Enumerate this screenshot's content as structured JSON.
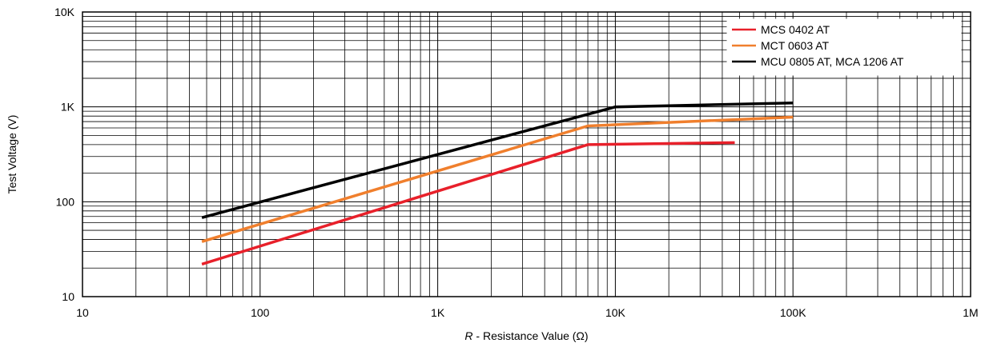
{
  "chart_data": {
    "type": "line",
    "title": "",
    "xlabel_italic": "R",
    "xlabel": " - Resistance Value (Ω)",
    "ylabel": "Test Voltage (V)",
    "x_scale": "log",
    "y_scale": "log",
    "xlim": [
      10,
      1000000
    ],
    "ylim": [
      10,
      10000
    ],
    "x_ticks": [
      10,
      100,
      1000,
      10000,
      100000,
      1000000
    ],
    "x_tick_labels": [
      "10",
      "100",
      "1K",
      "10K",
      "100K",
      "1M"
    ],
    "y_ticks": [
      10,
      100,
      1000,
      10000
    ],
    "y_tick_labels": [
      "10",
      "100",
      "1K",
      "10K"
    ],
    "grid": true,
    "legend_position": "top-right",
    "series": [
      {
        "name": "MCS 0402 AT",
        "color": "#e8202a",
        "x": [
          47,
          7000,
          47000
        ],
        "y": [
          22,
          400,
          420
        ]
      },
      {
        "name": "MCT 0603 AT",
        "color": "#f07f2d",
        "x": [
          47,
          7000,
          100000
        ],
        "y": [
          38,
          630,
          780
        ]
      },
      {
        "name": "MCU 0805 AT, MCA 1206 AT",
        "color": "#000000",
        "x": [
          47,
          10000,
          100000
        ],
        "y": [
          68,
          1000,
          1100
        ]
      }
    ]
  }
}
